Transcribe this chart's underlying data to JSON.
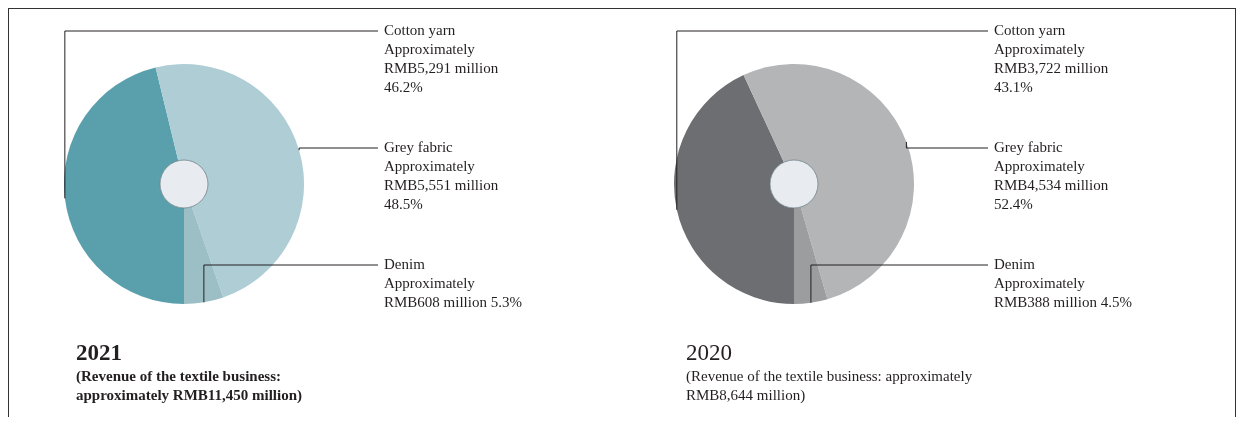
{
  "chart_data": [
    {
      "type": "donut",
      "title": "2021",
      "subtitle": "(Revenue of the textile business: approximately RMB11,450 million)",
      "categories": [
        "Cotton yarn",
        "Grey fabric",
        "Denim"
      ],
      "values": [
        46.2,
        48.5,
        5.3
      ],
      "colors": [
        "#5a9fac",
        "#afcdd5",
        "#9bbfc5"
      ],
      "value_labels": [
        "Approximately RMB5,291 million 46.2%",
        "Approximately RMB5,551 million 48.5%",
        "Approximately RMB608 million 5.3%"
      ],
      "legend": false
    },
    {
      "type": "donut",
      "title": "2020",
      "subtitle": "(Revenue of the textile business: approximately RMB8,644 million)",
      "categories": [
        "Cotton yarn",
        "Grey fabric",
        "Denim"
      ],
      "values": [
        43.1,
        52.4,
        4.5
      ],
      "colors": [
        "#6d6e71",
        "#b4b5b7",
        "#9c9d9f"
      ],
      "value_labels": [
        "Approximately RMB3,722 million 43.1%",
        "Approximately RMB4,534 million 52.4%",
        "Approximately RMB388 million 4.5%"
      ],
      "legend": false
    }
  ]
}
